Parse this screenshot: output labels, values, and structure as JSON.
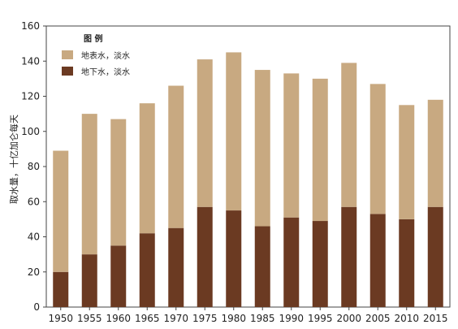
{
  "chart_data": {
    "type": "bar",
    "stacked": true,
    "categories": [
      "1950",
      "1955",
      "1960",
      "1965",
      "1970",
      "1975",
      "1980",
      "1985",
      "1990",
      "1995",
      "2000",
      "2005",
      "2010",
      "2015"
    ],
    "series": [
      {
        "name": "地下水，淡水",
        "color": "#6b3a22",
        "values": [
          20,
          30,
          35,
          42,
          45,
          57,
          55,
          46,
          51,
          49,
          57,
          53,
          50,
          57
        ]
      },
      {
        "name": "地表水，淡水",
        "color": "#c8a981",
        "values": [
          69,
          80,
          72,
          74,
          81,
          84,
          90,
          89,
          82,
          81,
          82,
          74,
          65,
          61
        ]
      }
    ],
    "title": "",
    "xlabel": "",
    "ylabel": "取水量，十亿加仑每天",
    "ylim": [
      0,
      160
    ],
    "yticks": [
      0,
      20,
      40,
      60,
      80,
      100,
      120,
      140,
      160
    ],
    "legend": {
      "title": "图 例",
      "placement": "top-left"
    },
    "grid": false
  }
}
